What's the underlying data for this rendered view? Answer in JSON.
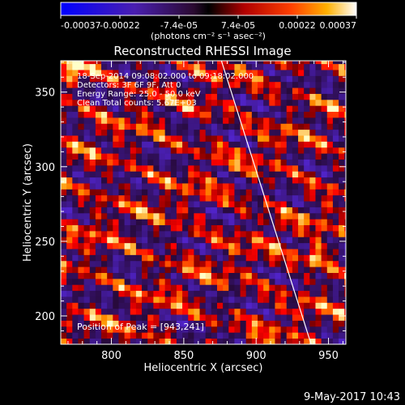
{
  "chart_data": {
    "type": "heatmap",
    "title": "Reconstructed RHESSI Image",
    "xlabel": "Heliocentric X (arcsec)",
    "ylabel": "Heliocentric Y (arcsec)",
    "xlim": [
      765,
      962
    ],
    "ylim": [
      181,
      371
    ],
    "x_ticks": [
      800,
      850,
      900,
      950
    ],
    "y_ticks": [
      200,
      250,
      300,
      350
    ],
    "colorbar": {
      "min": -0.00037,
      "max": 0.00037,
      "tick_labels": [
        "-0.00037",
        "-0.00022",
        "-7.4e-05",
        "7.4e-05",
        "0.00022",
        "0.00037"
      ],
      "unit_label": "(photons cm⁻² s⁻¹ asec⁻²)"
    },
    "annotations": [
      "18-Sep-2014 09:08:02.000 to 09:18:02.000",
      "Detectors: 3F 6F 9F, Att 0",
      "Energy Range: 25.0 - 50.0 keV",
      "Clean     Total counts: 5.67E+03"
    ],
    "peak_label": "Position of Peak = [943,241]",
    "peak_position": [
      943,
      241
    ],
    "limb_line": {
      "x": [
        876,
        938
      ],
      "y": [
        371,
        181
      ]
    },
    "colors": {
      "background": "#000000",
      "text": "#ffffff",
      "limb": "#ffffff"
    }
  },
  "footer": {
    "timestamp": "9-May-2017 10:43"
  }
}
